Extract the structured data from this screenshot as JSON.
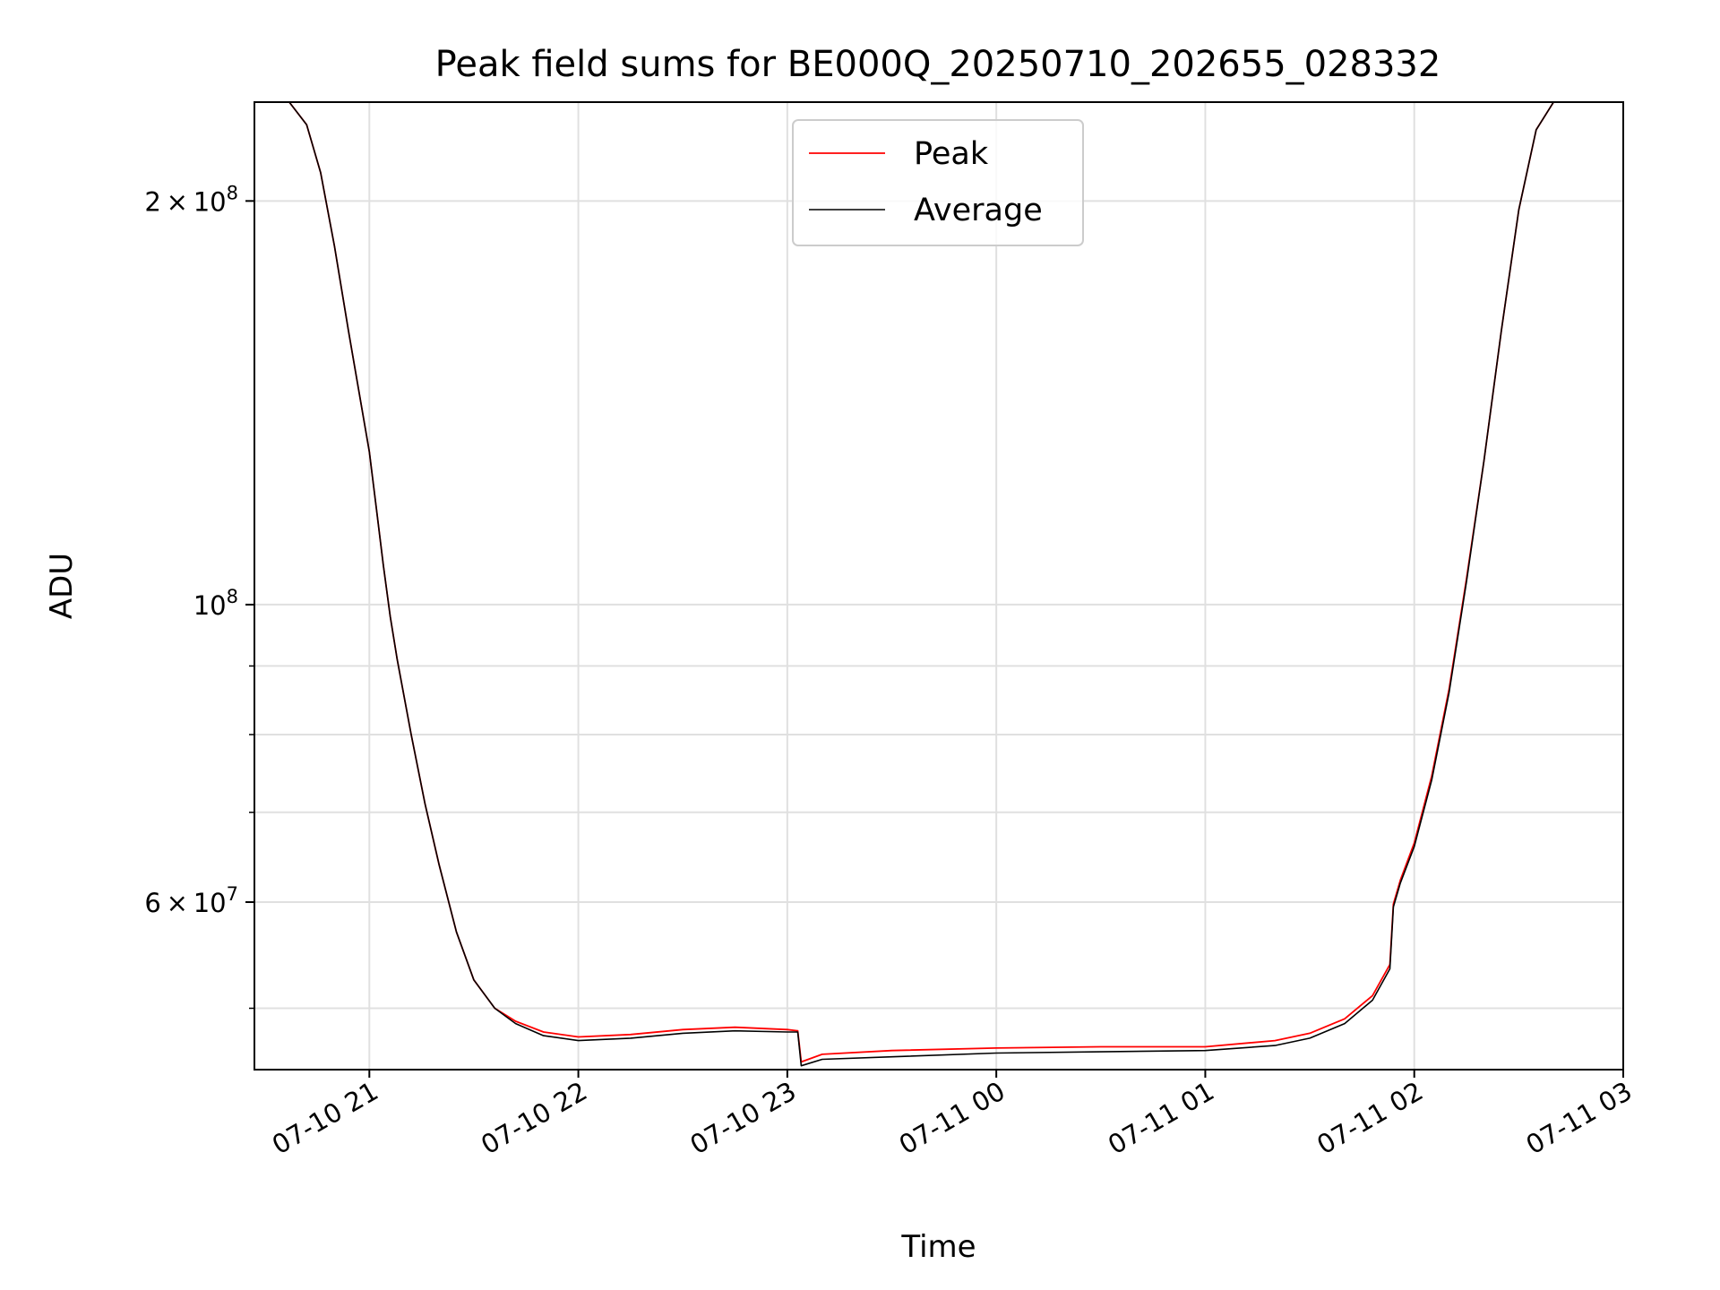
{
  "chart_data": {
    "type": "line",
    "title": "Peak field sums for BE000Q_20250710_202655_028332",
    "xlabel": "Time",
    "ylabel": "ADU",
    "x_unit": "datetime",
    "xlim": [
      "2025-07-10 20:27",
      "2025-07-11 03:00"
    ],
    "ylim": [
      45000000,
      237000000
    ],
    "yscale": "log",
    "grid": true,
    "legend": {
      "placement": "upper center",
      "entries": [
        "Peak",
        "Average"
      ]
    },
    "x_ticks": [
      "07-10 21",
      "07-10 22",
      "07-10 23",
      "07-11 00",
      "07-11 01",
      "07-11 02",
      "07-11 03"
    ],
    "y_tick_labels": [
      {
        "value": 200000000,
        "mantissa": "2",
        "exponent": "8"
      },
      {
        "value": 100000000,
        "mantissa": "",
        "exponent": "8"
      },
      {
        "value": 60000000,
        "mantissa": "6",
        "exponent": "7"
      }
    ],
    "y_minor_ticks": [
      50000000,
      70000000,
      80000000,
      90000000
    ],
    "series": [
      {
        "name": "Average",
        "color": "#000000",
        "x": [
          "2025-07-10 20:27",
          "2025-07-10 20:37",
          "2025-07-10 20:42",
          "2025-07-10 20:46",
          "2025-07-10 20:50",
          "2025-07-10 20:54",
          "2025-07-10 21:00",
          "2025-07-10 21:02",
          "2025-07-10 21:04",
          "2025-07-10 21:06",
          "2025-07-10 21:08",
          "2025-07-10 21:12",
          "2025-07-10 21:16",
          "2025-07-10 21:20",
          "2025-07-10 21:25",
          "2025-07-10 21:30",
          "2025-07-10 21:36",
          "2025-07-10 21:42",
          "2025-07-10 21:50",
          "2025-07-10 22:00",
          "2025-07-10 22:15",
          "2025-07-10 22:30",
          "2025-07-10 22:45",
          "2025-07-10 23:00",
          "2025-07-10 23:03",
          "2025-07-10 23:04",
          "2025-07-10 23:10",
          "2025-07-10 23:30",
          "2025-07-11 00:00",
          "2025-07-11 00:30",
          "2025-07-11 01:00",
          "2025-07-11 01:20",
          "2025-07-11 01:30",
          "2025-07-11 01:40",
          "2025-07-11 01:48",
          "2025-07-11 01:53",
          "2025-07-11 01:54",
          "2025-07-11 01:56",
          "2025-07-11 02:00",
          "2025-07-11 02:05",
          "2025-07-11 02:10",
          "2025-07-11 02:15",
          "2025-07-11 02:20",
          "2025-07-11 02:25",
          "2025-07-11 02:30",
          "2025-07-11 02:35",
          "2025-07-11 02:40",
          "2025-07-11 02:45",
          "2025-07-11 02:50",
          "2025-07-11 03:00"
        ],
        "y": [
          237000000,
          237000000,
          228000000,
          210000000,
          185000000,
          160000000,
          130000000,
          118000000,
          107000000,
          98000000,
          91000000,
          80000000,
          71000000,
          64000000,
          57000000,
          52500000,
          50000000,
          48700000,
          47700000,
          47300000,
          47500000,
          47900000,
          48100000,
          48000000,
          48000000,
          45300000,
          45800000,
          46000000,
          46300000,
          46400000,
          46500000,
          46900000,
          47500000,
          48700000,
          50700000,
          53500000,
          59500000,
          62000000,
          66000000,
          74000000,
          86000000,
          104000000,
          128000000,
          160000000,
          197000000,
          226000000,
          237000000,
          237000000,
          237000000,
          237000000
        ]
      },
      {
        "name": "Peak",
        "color": "#ff0000",
        "x": [
          "2025-07-10 20:27",
          "2025-07-10 20:37",
          "2025-07-10 20:42",
          "2025-07-10 20:46",
          "2025-07-10 20:50",
          "2025-07-10 20:54",
          "2025-07-10 21:00",
          "2025-07-10 21:02",
          "2025-07-10 21:04",
          "2025-07-10 21:06",
          "2025-07-10 21:08",
          "2025-07-10 21:12",
          "2025-07-10 21:16",
          "2025-07-10 21:20",
          "2025-07-10 21:25",
          "2025-07-10 21:30",
          "2025-07-10 21:36",
          "2025-07-10 21:42",
          "2025-07-10 21:50",
          "2025-07-10 22:00",
          "2025-07-10 22:15",
          "2025-07-10 22:30",
          "2025-07-10 22:45",
          "2025-07-10 23:00",
          "2025-07-10 23:03",
          "2025-07-10 23:04",
          "2025-07-10 23:10",
          "2025-07-10 23:30",
          "2025-07-11 00:00",
          "2025-07-11 00:30",
          "2025-07-11 01:00",
          "2025-07-11 01:20",
          "2025-07-11 01:30",
          "2025-07-11 01:40",
          "2025-07-11 01:48",
          "2025-07-11 01:53",
          "2025-07-11 01:54",
          "2025-07-11 01:56",
          "2025-07-11 02:00",
          "2025-07-11 02:05",
          "2025-07-11 02:10",
          "2025-07-11 02:15",
          "2025-07-11 02:20",
          "2025-07-11 02:25",
          "2025-07-11 02:30",
          "2025-07-11 02:35",
          "2025-07-11 02:40",
          "2025-07-11 02:45",
          "2025-07-11 02:50",
          "2025-07-11 03:00"
        ],
        "y": [
          237000000,
          237000000,
          228000000,
          210000000,
          185000000,
          160000000,
          130000000,
          118000000,
          107000000,
          98000000,
          91000000,
          80000000,
          71000000,
          64000000,
          57000000,
          52500000,
          50000000,
          48900000,
          48000000,
          47600000,
          47800000,
          48200000,
          48400000,
          48200000,
          48100000,
          45600000,
          46200000,
          46500000,
          46700000,
          46800000,
          46800000,
          47300000,
          47900000,
          49100000,
          51100000,
          53900000,
          59800000,
          62300000,
          66400000,
          74500000,
          86500000,
          104500000,
          128000000,
          160000000,
          197000000,
          226000000,
          237000000,
          237000000,
          237000000,
          237000000
        ]
      }
    ]
  }
}
